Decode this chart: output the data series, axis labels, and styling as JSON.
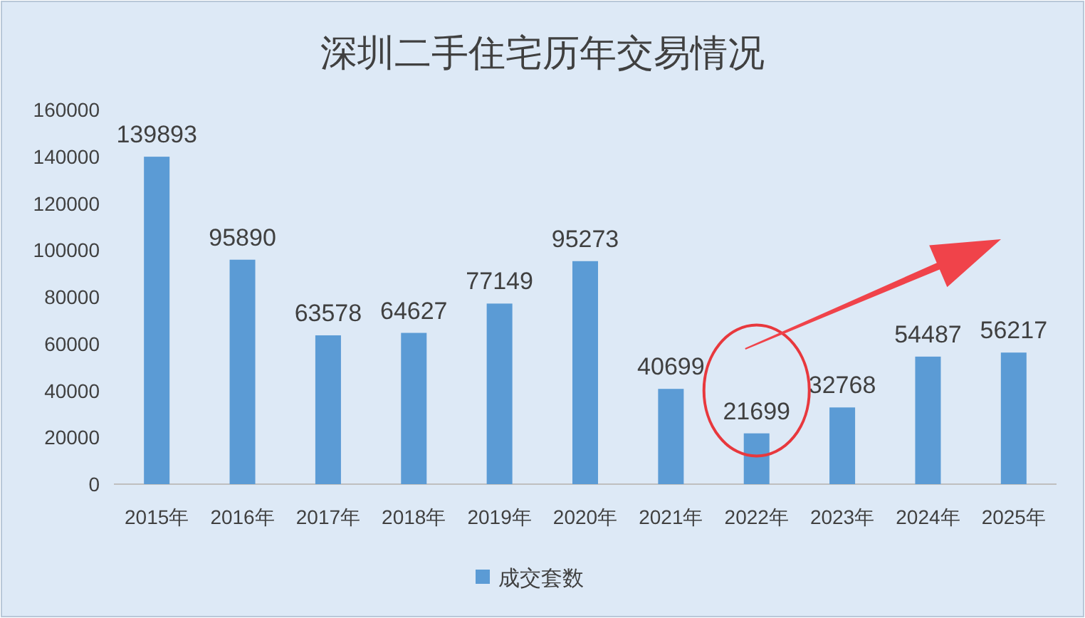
{
  "chart_data": {
    "type": "bar",
    "title": "深圳二手住宅历年交易情况",
    "categories": [
      "2015年",
      "2016年",
      "2017年",
      "2018年",
      "2019年",
      "2020年",
      "2021年",
      "2022年",
      "2023年",
      "2024年",
      "2025年"
    ],
    "series": [
      {
        "name": "成交套数",
        "color": "#5b9bd5",
        "values": [
          139893,
          95890,
          63578,
          64627,
          77149,
          95273,
          40699,
          21699,
          32768,
          54487,
          56217
        ]
      }
    ],
    "ylim": [
      0,
      160000
    ],
    "yticks": [
      0,
      20000,
      40000,
      60000,
      80000,
      100000,
      120000,
      140000,
      160000
    ],
    "data_labels": true,
    "legend": "bottom"
  }
}
